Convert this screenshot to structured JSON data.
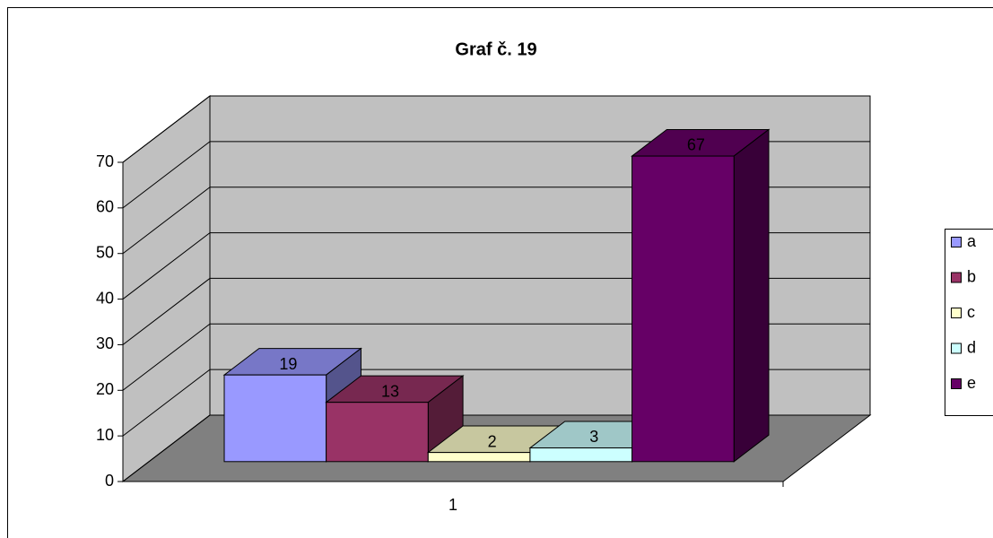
{
  "chart_data": {
    "type": "bar",
    "title": "Graf č. 19",
    "categories": [
      "1"
    ],
    "series": [
      {
        "name": "a",
        "color": "#9999ff",
        "values": [
          19
        ]
      },
      {
        "name": "b",
        "color": "#993366",
        "values": [
          13
        ]
      },
      {
        "name": "c",
        "color": "#ffffcc",
        "values": [
          2
        ]
      },
      {
        "name": "d",
        "color": "#ccffff",
        "values": [
          3
        ]
      },
      {
        "name": "e",
        "color": "#660066",
        "values": [
          67
        ]
      }
    ],
    "ylim": [
      0,
      70
    ],
    "yticks": [
      0,
      10,
      20,
      30,
      40,
      50,
      60,
      70
    ],
    "grid": true,
    "legend": "right"
  }
}
